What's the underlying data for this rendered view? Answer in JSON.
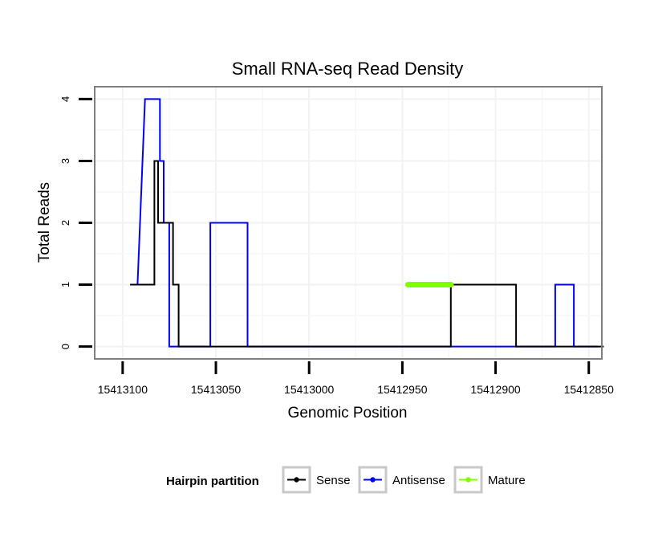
{
  "chart_data": {
    "type": "line",
    "title": "Small RNA-seq Read Density",
    "xlabel": "Genomic Position",
    "ylabel": "Total Reads",
    "xlim": [
      15413115,
      15412843
    ],
    "ylim": [
      -0.2,
      4.2
    ],
    "x_reversed": true,
    "grid": true,
    "x_ticks": [
      15413100,
      15413050,
      15413000,
      15412950,
      15412900,
      15412850
    ],
    "x_tick_labels": [
      "15413100",
      "15413050",
      "15413000",
      "15412950",
      "15412900",
      "15412850"
    ],
    "y_ticks": [
      0,
      1,
      2,
      3,
      4
    ],
    "y_tick_labels": [
      "0",
      "1",
      "2",
      "3",
      "4"
    ],
    "legend": {
      "title": "Hairpin partition",
      "position": "bottom",
      "entries": [
        "Sense",
        "Antisense",
        "Mature"
      ]
    },
    "series": [
      {
        "name": "Antisense",
        "color": "#0000ff",
        "x": [
          15413092,
          15413092,
          15413088,
          15413088,
          15413080,
          15413080,
          15413078,
          15413078,
          15413075,
          15413075,
          15413064,
          15413064,
          15413053,
          15413053,
          15413046,
          15413046,
          15413033,
          15413033,
          15412931,
          15412931,
          15412875,
          15412875,
          15412868,
          15412868,
          15412858,
          15412858,
          15412845
        ],
        "y": [
          1,
          1,
          4,
          4,
          4,
          3,
          3,
          2,
          2,
          0,
          0,
          0,
          0,
          2,
          2,
          2,
          2,
          0,
          0,
          0,
          0,
          0,
          0,
          1,
          1,
          0,
          0
        ]
      },
      {
        "name": "Sense",
        "color": "#000000",
        "x": [
          15413096,
          15413083,
          15413083,
          15413081,
          15413081,
          15413079,
          15413079,
          15413073,
          15413073,
          15413070,
          15413070,
          15413068,
          15413068,
          15412947,
          15412947,
          15412924,
          15412924,
          15412889,
          15412889,
          15412868,
          15412868,
          15412842
        ],
        "y": [
          1,
          1,
          3,
          3,
          2,
          2,
          2,
          2,
          1,
          1,
          0,
          0,
          0,
          0,
          0,
          0,
          1,
          1,
          0,
          0,
          0,
          0
        ]
      },
      {
        "name": "Mature",
        "color": "#80ff00",
        "x": [
          15412947,
          15412924
        ],
        "y": [
          1,
          1
        ]
      }
    ]
  }
}
